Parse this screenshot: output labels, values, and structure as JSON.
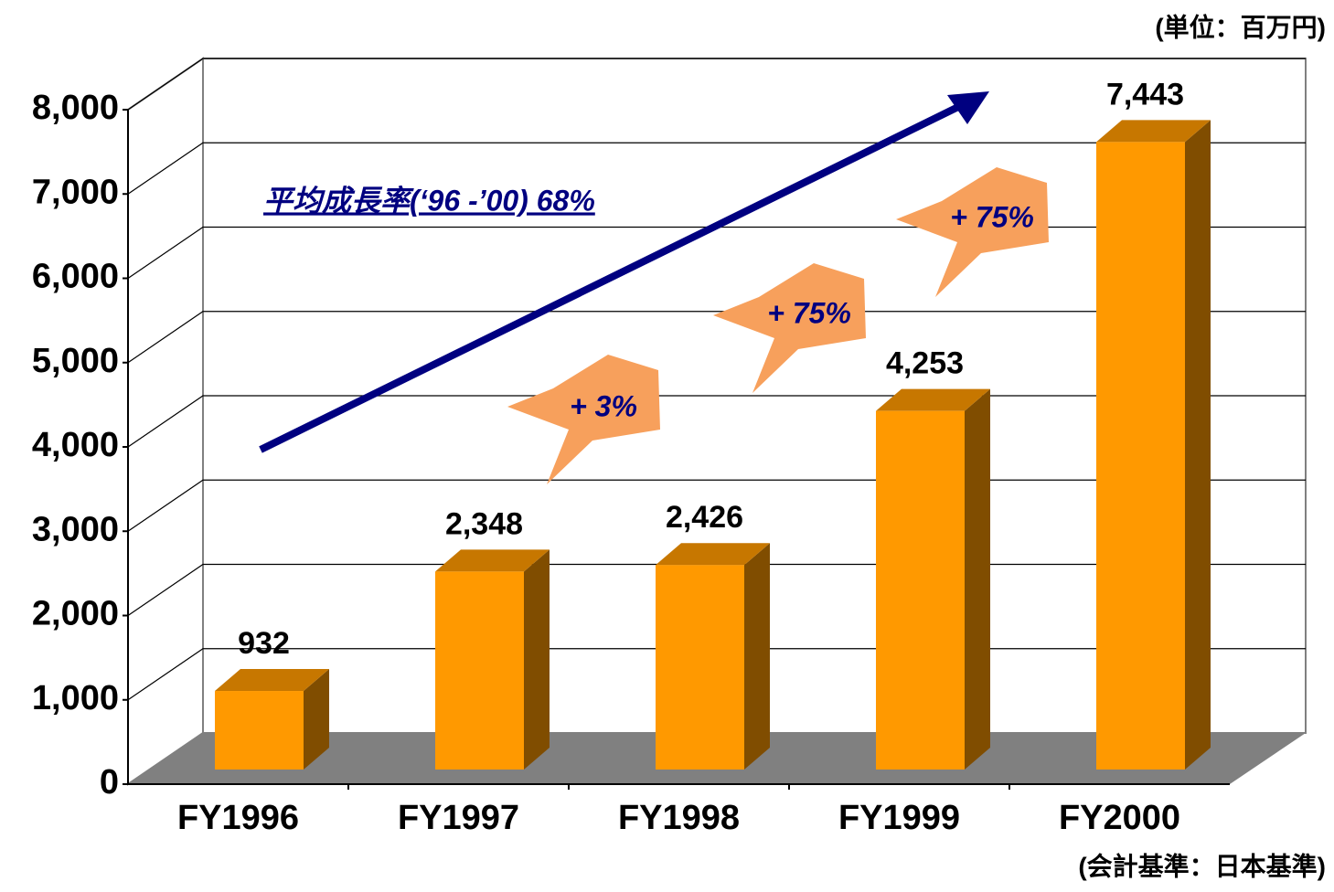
{
  "chart_data": {
    "type": "bar3d",
    "unit": "(単位：百万円)",
    "footnote": "(会計基準：日本基準)",
    "categories": [
      "FY1996",
      "FY1997",
      "FY1998",
      "FY1999",
      "FY2000"
    ],
    "values": [
      932,
      2348,
      2426,
      4253,
      7443
    ],
    "value_labels": [
      "932",
      "2,348",
      "2,426",
      "4,253",
      "7,443"
    ],
    "color": "#ff9900",
    "ylim": [
      0,
      8000
    ],
    "yticks": [
      0,
      {
        "value": 1000,
        "label": "1,000"
      },
      {
        "value": 2000,
        "label": "2,000"
      },
      {
        "value": 3000,
        "label": "3,000"
      },
      {
        "value": 4000,
        "label": "4,000"
      },
      {
        "value": 5000,
        "label": "5,000"
      },
      {
        "value": 6000,
        "label": "6,000"
      },
      {
        "value": 7000,
        "label": "7,000"
      },
      {
        "value": 8000,
        "label": "8,000"
      }
    ],
    "grid": true,
    "annotations": [
      "平均成長率(‘96 -’00) 68%",
      "+ 3%",
      "+ 75%",
      "+ 75%"
    ]
  }
}
